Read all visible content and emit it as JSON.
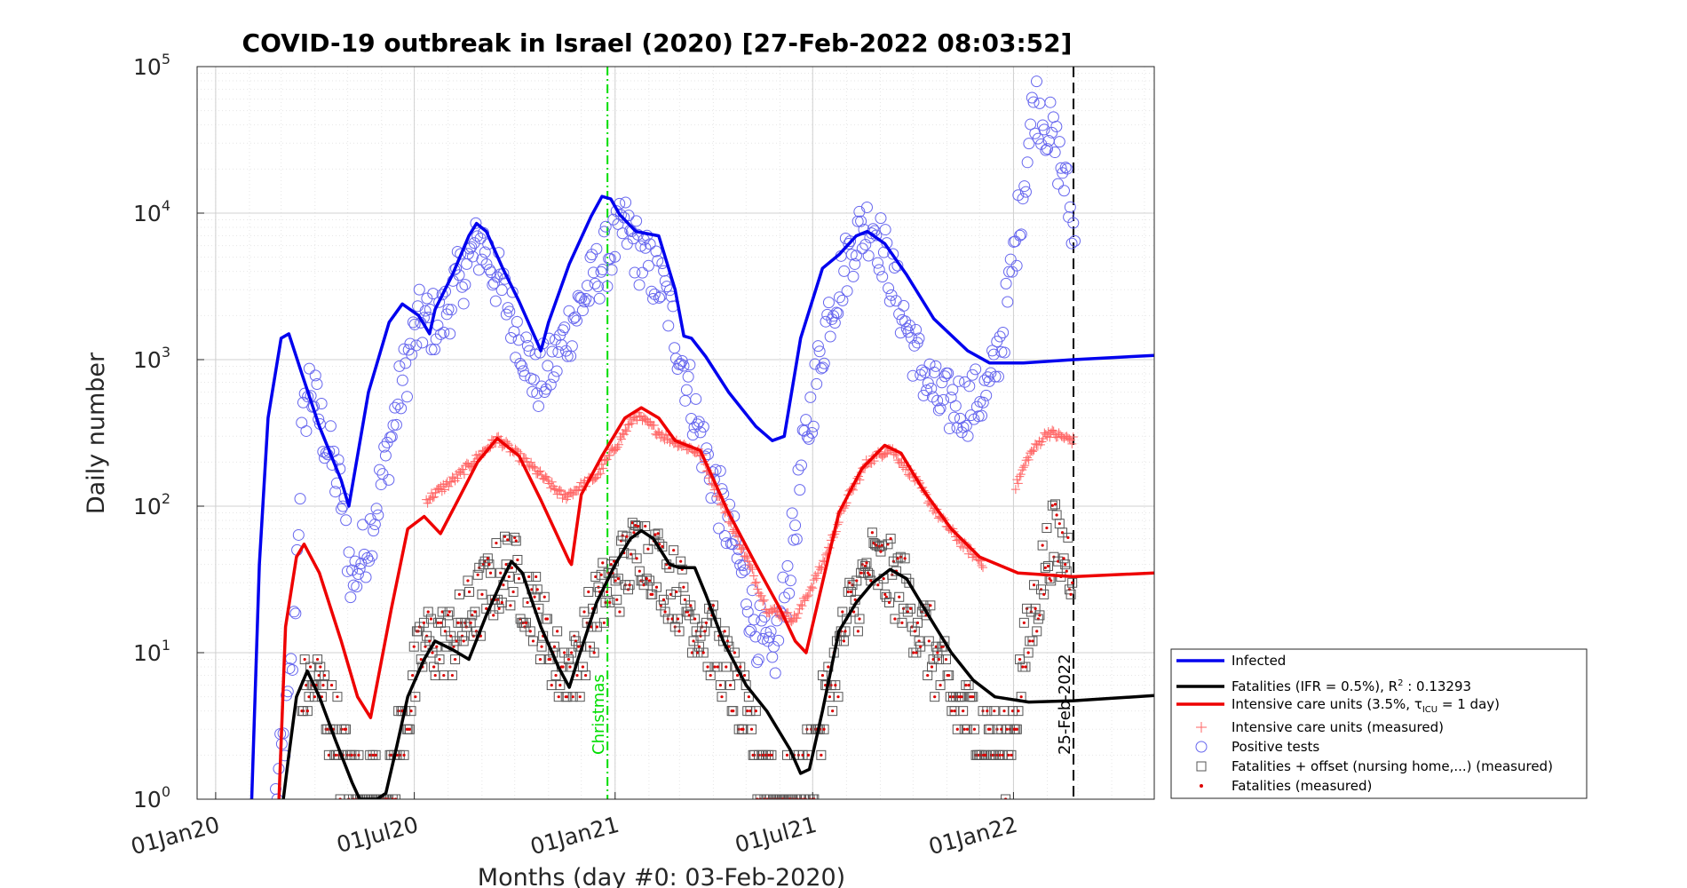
{
  "chart_data": {
    "type": "scatter",
    "title": "COVID-19 outbreak in Israel (2020) [27-Feb-2022 08:03:52]",
    "xlabel": "Months (day #0: 03-Feb-2020)",
    "ylabel": "Daily number",
    "yscale": "log",
    "ylim": [
      1,
      100000
    ],
    "xlim": [
      "2019-12-15",
      "2022-05-10"
    ],
    "grid": true,
    "legend_position": "bottom-right",
    "x_ticks": [
      {
        "date": "2020-01-01",
        "label": "01Jan20"
      },
      {
        "date": "2020-07-01",
        "label": "01Jul20"
      },
      {
        "date": "2021-01-01",
        "label": "01Jan21"
      },
      {
        "date": "2021-07-01",
        "label": "01Jul21"
      },
      {
        "date": "2022-01-01",
        "label": "01Jan22"
      }
    ],
    "y_ticks": [
      {
        "value": 1,
        "base": "10",
        "exp": "0"
      },
      {
        "value": 10,
        "base": "10",
        "exp": "1"
      },
      {
        "value": 100,
        "base": "10",
        "exp": "2"
      },
      {
        "value": 1000,
        "base": "10",
        "exp": "3"
      },
      {
        "value": 10000,
        "base": "10",
        "exp": "4"
      },
      {
        "value": 100000,
        "base": "10",
        "exp": "5"
      }
    ],
    "vlines": [
      {
        "date": "2020-12-25",
        "label": "Christmas",
        "color": "#00dd00",
        "style": "dashdot"
      },
      {
        "date": "2022-02-25",
        "label": "25-Feb-2022",
        "color": "#000000",
        "style": "dashed"
      }
    ],
    "series": [
      {
        "name": "Infected",
        "kind": "line",
        "color": "#0000ee",
        "points": [
          [
            "2020-02-03",
            1
          ],
          [
            "2020-02-10",
            40
          ],
          [
            "2020-02-18",
            400
          ],
          [
            "2020-03-01",
            1400
          ],
          [
            "2020-03-08",
            1500
          ],
          [
            "2020-03-20",
            800
          ],
          [
            "2020-04-05",
            350
          ],
          [
            "2020-04-25",
            150
          ],
          [
            "2020-05-02",
            100
          ],
          [
            "2020-05-20",
            600
          ],
          [
            "2020-06-08",
            1800
          ],
          [
            "2020-06-20",
            2400
          ],
          [
            "2020-07-05",
            2000
          ],
          [
            "2020-07-15",
            1500
          ],
          [
            "2020-07-20",
            2200
          ],
          [
            "2020-08-05",
            3800
          ],
          [
            "2020-08-20",
            7000
          ],
          [
            "2020-08-27",
            8500
          ],
          [
            "2020-09-05",
            7500
          ],
          [
            "2020-09-20",
            4200
          ],
          [
            "2020-10-05",
            2500
          ],
          [
            "2020-10-25",
            1150
          ],
          [
            "2020-11-01",
            1800
          ],
          [
            "2020-11-20",
            4500
          ],
          [
            "2020-12-10",
            9500
          ],
          [
            "2020-12-20",
            13000
          ],
          [
            "2020-12-28",
            12500
          ],
          [
            "2021-01-05",
            9800
          ],
          [
            "2021-01-20",
            7500
          ],
          [
            "2021-02-10",
            7000
          ],
          [
            "2021-02-25",
            3000
          ],
          [
            "2021-03-05",
            1450
          ],
          [
            "2021-03-12",
            1400
          ],
          [
            "2021-03-25",
            1050
          ],
          [
            "2021-04-15",
            600
          ],
          [
            "2021-05-10",
            350
          ],
          [
            "2021-05-25",
            280
          ],
          [
            "2021-06-05",
            300
          ],
          [
            "2021-06-20",
            1400
          ],
          [
            "2021-07-10",
            4200
          ],
          [
            "2021-07-25",
            5200
          ],
          [
            "2021-08-10",
            7000
          ],
          [
            "2021-08-20",
            7500
          ],
          [
            "2021-09-05",
            6200
          ],
          [
            "2021-09-25",
            3800
          ],
          [
            "2021-10-20",
            1900
          ],
          [
            "2021-11-20",
            1150
          ],
          [
            "2021-12-10",
            950
          ],
          [
            "2022-01-10",
            950
          ],
          [
            "2022-02-25",
            1000
          ],
          [
            "2022-05-10",
            1070
          ]
        ]
      },
      {
        "name": "Fatalities (IFR = 0.5%), R² : 0.13293",
        "kind": "line",
        "color": "#000000",
        "points": [
          [
            "2020-03-03",
            1
          ],
          [
            "2020-03-08",
            2
          ],
          [
            "2020-03-15",
            5
          ],
          [
            "2020-03-25",
            7.5
          ],
          [
            "2020-04-05",
            5
          ],
          [
            "2020-04-20",
            2.5
          ],
          [
            "2020-05-05",
            1.3
          ],
          [
            "2020-05-12",
            1
          ],
          [
            "2020-05-28",
            1
          ],
          [
            "2020-06-05",
            1.1
          ],
          [
            "2020-06-15",
            2.3
          ],
          [
            "2020-06-25",
            5
          ],
          [
            "2020-07-10",
            9
          ],
          [
            "2020-07-20",
            12
          ],
          [
            "2020-08-05",
            10.5
          ],
          [
            "2020-08-20",
            9
          ],
          [
            "2020-09-05",
            18
          ],
          [
            "2020-09-20",
            32
          ],
          [
            "2020-09-28",
            42
          ],
          [
            "2020-10-08",
            35
          ],
          [
            "2020-10-25",
            15
          ],
          [
            "2020-11-10",
            8
          ],
          [
            "2020-11-20",
            5.8
          ],
          [
            "2020-11-28",
            9
          ],
          [
            "2020-12-15",
            22
          ],
          [
            "2021-01-01",
            40
          ],
          [
            "2021-01-15",
            60
          ],
          [
            "2021-01-25",
            68
          ],
          [
            "2021-02-05",
            60
          ],
          [
            "2021-02-20",
            40
          ],
          [
            "2021-03-01",
            38
          ],
          [
            "2021-03-15",
            38
          ],
          [
            "2021-03-25",
            25
          ],
          [
            "2021-04-10",
            12
          ],
          [
            "2021-05-01",
            6
          ],
          [
            "2021-05-20",
            4
          ],
          [
            "2021-06-10",
            2.2
          ],
          [
            "2021-06-20",
            1.5
          ],
          [
            "2021-06-28",
            1.6
          ],
          [
            "2021-07-10",
            4
          ],
          [
            "2021-07-25",
            14
          ],
          [
            "2021-08-10",
            22
          ],
          [
            "2021-08-25",
            30
          ],
          [
            "2021-09-10",
            37
          ],
          [
            "2021-09-25",
            32
          ],
          [
            "2021-10-15",
            18
          ],
          [
            "2021-11-05",
            10
          ],
          [
            "2021-11-25",
            6.5
          ],
          [
            "2021-12-15",
            5
          ],
          [
            "2022-01-15",
            4.6
          ],
          [
            "2022-02-25",
            4.7
          ],
          [
            "2022-05-10",
            5.1
          ]
        ]
      },
      {
        "name": "Intensive care units (3.5%, τICU = 1 day)",
        "kind": "line",
        "color": "#ee0000",
        "points": [
          [
            "2020-02-28",
            1
          ],
          [
            "2020-03-05",
            15
          ],
          [
            "2020-03-15",
            45
          ],
          [
            "2020-03-22",
            55
          ],
          [
            "2020-04-05",
            35
          ],
          [
            "2020-04-25",
            12
          ],
          [
            "2020-05-10",
            5
          ],
          [
            "2020-05-22",
            3.6
          ],
          [
            "2020-06-10",
            20
          ],
          [
            "2020-06-25",
            70
          ],
          [
            "2020-07-10",
            85
          ],
          [
            "2020-07-25",
            65
          ],
          [
            "2020-08-10",
            110
          ],
          [
            "2020-08-28",
            200
          ],
          [
            "2020-09-15",
            290
          ],
          [
            "2020-10-05",
            220
          ],
          [
            "2020-10-25",
            110
          ],
          [
            "2020-11-20",
            42
          ],
          [
            "2020-11-22",
            40
          ],
          [
            "2020-12-01",
            120
          ],
          [
            "2020-12-20",
            220
          ],
          [
            "2021-01-10",
            400
          ],
          [
            "2021-01-25",
            470
          ],
          [
            "2021-02-10",
            400
          ],
          [
            "2021-02-25",
            280
          ],
          [
            "2021-03-20",
            240
          ],
          [
            "2021-04-15",
            90
          ],
          [
            "2021-05-10",
            40
          ],
          [
            "2021-06-01",
            20
          ],
          [
            "2021-06-15",
            12
          ],
          [
            "2021-06-25",
            10
          ],
          [
            "2021-07-10",
            30
          ],
          [
            "2021-07-25",
            90
          ],
          [
            "2021-08-15",
            180
          ],
          [
            "2021-09-05",
            260
          ],
          [
            "2021-09-20",
            230
          ],
          [
            "2021-10-10",
            130
          ],
          [
            "2021-11-05",
            70
          ],
          [
            "2021-12-01",
            45
          ],
          [
            "2022-01-05",
            35
          ],
          [
            "2022-02-25",
            33
          ],
          [
            "2022-05-10",
            35
          ]
        ]
      },
      {
        "name": "Intensive care units (measured)",
        "kind": "marker-plus",
        "color": "#ff6666"
      },
      {
        "name": "Positive tests",
        "kind": "marker-circle",
        "color": "#6666ee"
      },
      {
        "name": "Fatalities + offset (nursing home,...) (measured)",
        "kind": "marker-square",
        "color": "#555555"
      },
      {
        "name": "Fatalities (measured)",
        "kind": "marker-dot",
        "color": "#dd0000"
      }
    ],
    "scatter_ranges": {
      "positive_tests": [
        [
          "2020-02-25",
          1
        ],
        [
          "2020-03-05",
          3
        ],
        [
          "2020-03-12",
          10
        ],
        [
          "2020-03-20",
          300
        ],
        [
          "2020-03-27",
          700
        ],
        [
          "2020-04-10",
          300
        ],
        [
          "2020-04-25",
          120
        ],
        [
          "2020-05-05",
          30
        ],
        [
          "2020-05-20",
          60
        ],
        [
          "2020-06-05",
          200
        ],
        [
          "2020-06-20",
          700
        ],
        [
          "2020-07-05",
          1800
        ],
        [
          "2020-07-25",
          1800
        ],
        [
          "2020-08-15",
          4000
        ],
        [
          "2020-09-01",
          6500
        ],
        [
          "2020-09-15",
          3500
        ],
        [
          "2020-10-05",
          1500
        ],
        [
          "2020-10-20",
          700
        ],
        [
          "2020-11-05",
          900
        ],
        [
          "2020-11-25",
          2000
        ],
        [
          "2020-12-20",
          4500
        ],
        [
          "2021-01-10",
          8000
        ],
        [
          "2021-01-25",
          5000
        ],
        [
          "2021-02-15",
          3000
        ],
        [
          "2021-03-05",
          900
        ],
        [
          "2021-03-20",
          300
        ],
        [
          "2021-04-10",
          90
        ],
        [
          "2021-04-25",
          40
        ],
        [
          "2021-05-10",
          15
        ],
        [
          "2021-05-25",
          8
        ],
        [
          "2021-06-10",
          40
        ],
        [
          "2021-06-25",
          300
        ],
        [
          "2021-07-15",
          2000
        ],
        [
          "2021-08-10",
          7000
        ],
        [
          "2021-08-25",
          9000
        ],
        [
          "2021-09-15",
          3000
        ],
        [
          "2021-10-05",
          1000
        ],
        [
          "2021-10-25",
          500
        ],
        [
          "2021-11-20",
          500
        ],
        [
          "2021-12-10",
          600
        ],
        [
          "2021-12-25",
          2000
        ],
        [
          "2022-01-10",
          15000
        ],
        [
          "2022-01-20",
          60000
        ],
        [
          "2022-02-01",
          40000
        ],
        [
          "2022-02-15",
          20000
        ],
        [
          "2022-02-27",
          6000
        ]
      ],
      "icu_measured": [
        [
          "2020-07-12",
          110
        ],
        [
          "2020-08-10",
          160
        ],
        [
          "2020-09-15",
          290
        ],
        [
          "2020-10-15",
          190
        ],
        [
          "2020-11-15",
          115
        ],
        [
          "2020-12-15",
          160
        ],
        [
          "2021-01-20",
          420
        ],
        [
          "2021-02-15",
          300
        ],
        [
          "2021-03-20",
          230
        ],
        [
          "2021-04-10",
          100
        ],
        [
          "2021-05-01",
          45
        ],
        [
          "2021-05-20",
          20
        ],
        [
          "2021-06-15",
          17
        ],
        [
          "2021-07-10",
          40
        ],
        [
          "2021-08-01",
          110
        ],
        [
          "2021-08-20",
          200
        ],
        [
          "2021-09-10",
          250
        ],
        [
          "2021-10-01",
          160
        ],
        [
          "2021-10-25",
          85
        ],
        [
          "2021-11-15",
          55
        ],
        [
          "2021-12-05",
          40
        ],
        [
          "2022-01-02",
          130
        ],
        [
          "2022-01-15",
          220
        ],
        [
          "2022-02-01",
          320
        ],
        [
          "2022-02-25",
          280
        ]
      ],
      "fatalities_measured": [
        [
          "2020-03-20",
          5
        ],
        [
          "2020-04-05",
          6
        ],
        [
          "2020-04-20",
          3
        ],
        [
          "2020-05-10",
          1
        ],
        [
          "2020-06-05",
          1
        ],
        [
          "2020-06-20",
          3
        ],
        [
          "2020-07-10",
          12
        ],
        [
          "2020-08-05",
          12
        ],
        [
          "2020-08-25",
          20
        ],
        [
          "2020-09-25",
          40
        ],
        [
          "2020-10-20",
          20
        ],
        [
          "2020-11-10",
          8
        ],
        [
          "2020-11-25",
          8
        ],
        [
          "2020-12-15",
          20
        ],
        [
          "2021-01-05",
          35
        ],
        [
          "2021-01-25",
          55
        ],
        [
          "2021-02-15",
          35
        ],
        [
          "2021-03-10",
          20
        ],
        [
          "2021-03-30",
          12
        ],
        [
          "2021-04-20",
          6
        ],
        [
          "2021-05-10",
          2
        ],
        [
          "2021-06-05",
          1
        ],
        [
          "2021-06-25",
          1.5
        ],
        [
          "2021-07-15",
          5
        ],
        [
          "2021-08-05",
          20
        ],
        [
          "2021-08-25",
          40
        ],
        [
          "2021-09-20",
          28
        ],
        [
          "2021-10-15",
          12
        ],
        [
          "2021-11-05",
          5
        ],
        [
          "2021-12-05",
          3
        ],
        [
          "2021-12-25",
          2
        ],
        [
          "2022-01-20",
          20
        ],
        [
          "2022-02-05",
          60
        ],
        [
          "2022-02-25",
          40
        ]
      ]
    }
  }
}
